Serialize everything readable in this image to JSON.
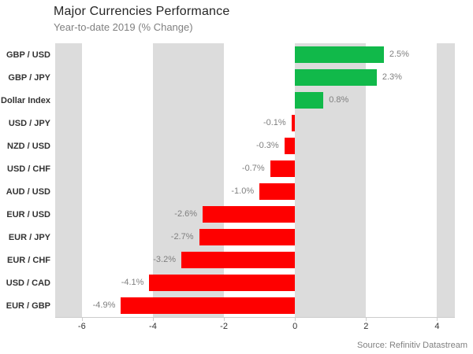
{
  "header": {
    "title": "Major Currencies Performance",
    "subtitle": "Year-to-date 2019 (% Change)"
  },
  "footer": {
    "source": "Source: Refinitiv Datastream"
  },
  "chart_data": {
    "type": "bar",
    "orientation": "horizontal",
    "title": "Major Currencies Performance",
    "subtitle": "Year-to-date 2019 (% Change)",
    "categories": [
      "GBP / USD",
      "GBP / JPY",
      "Dollar Index",
      "USD / JPY",
      "NZD / USD",
      "USD / CHF",
      "AUD / USD",
      "EUR / USD",
      "EUR / JPY",
      "EUR / CHF",
      "USD / CAD",
      "EUR / GBP"
    ],
    "values": [
      2.5,
      2.3,
      0.8,
      -0.1,
      -0.3,
      -0.7,
      -1.0,
      -2.6,
      -2.7,
      -3.2,
      -4.1,
      -4.9
    ],
    "value_labels": [
      "2.5%",
      "2.3%",
      "0.8%",
      "-0.1%",
      "-0.3%",
      "-0.7%",
      "-1.0%",
      "-2.6%",
      "-2.7%",
      "-3.2%",
      "-4.1%",
      "-4.9%"
    ],
    "xlabel": "",
    "ylabel": "",
    "xlim": [
      -6.75,
      4.5
    ],
    "x_ticks": [
      -6,
      -4,
      -2,
      0,
      2,
      4
    ],
    "x_tick_labels": [
      "-6",
      "-4",
      "-2",
      "0",
      "2",
      "4"
    ],
    "plot_bands": [
      [
        -6.75,
        -6
      ],
      [
        -4,
        -2
      ],
      [
        0,
        2
      ],
      [
        4,
        4.5
      ]
    ],
    "grid": false,
    "legend": false,
    "colors": {
      "positive": "#11b94a",
      "negative": "#fe0000",
      "plot_band": "#dcdcdc",
      "axis_line": "#cccccc",
      "value_label": "#7f7f7f",
      "category_label": "#333333"
    }
  }
}
